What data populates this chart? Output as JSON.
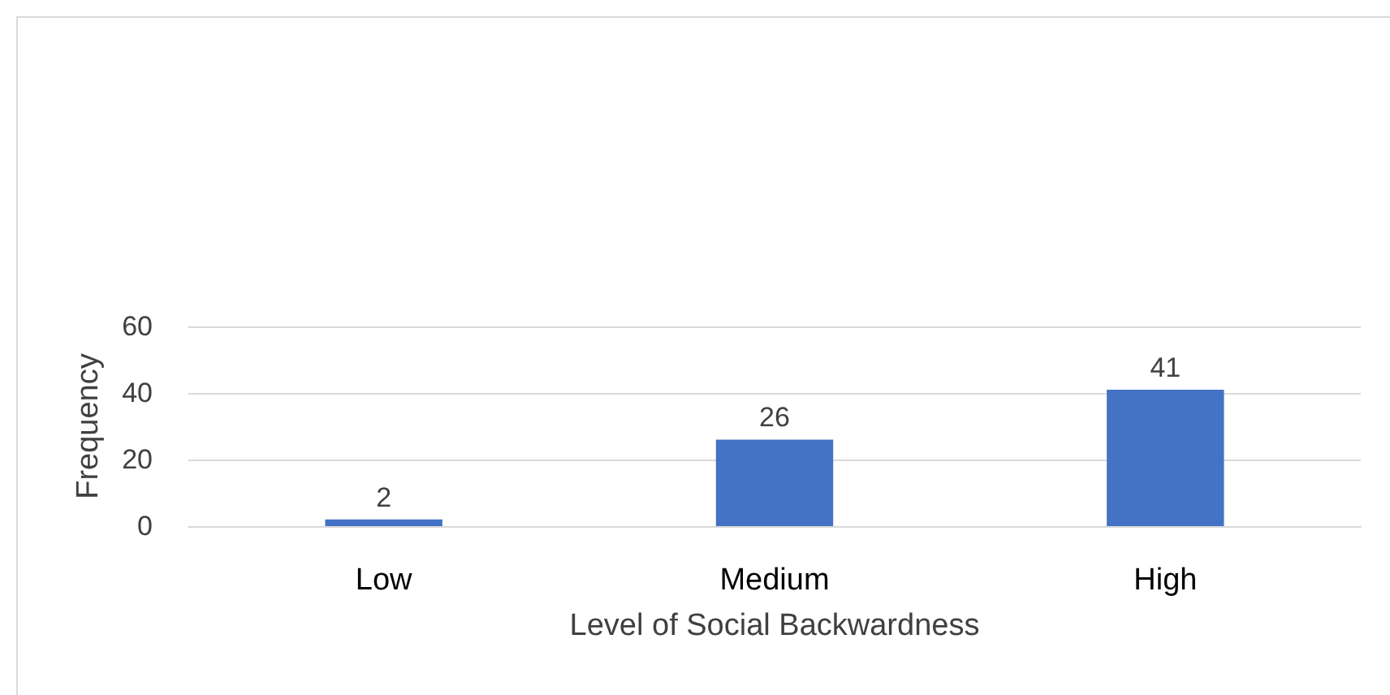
{
  "chart_data": {
    "type": "bar",
    "xlabel": "Level of Social Backwardness",
    "ylabel": "Frequency",
    "categories": [
      "Low",
      "Medium",
      "High"
    ],
    "values": [
      2,
      26,
      41
    ],
    "color": "#4472c4",
    "ylim": [
      0,
      60
    ],
    "yticks": [
      0,
      20,
      40,
      60
    ],
    "grid": "y",
    "data_labels": true
  }
}
